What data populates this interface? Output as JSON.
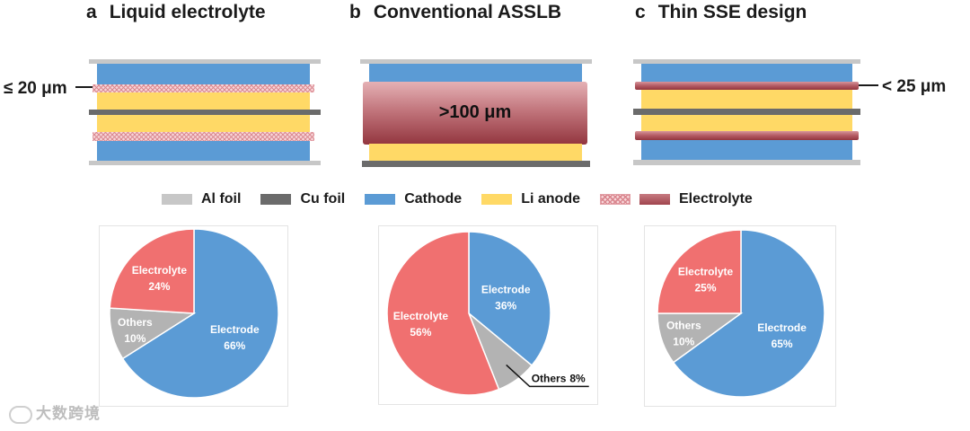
{
  "panels": [
    {
      "letter": "a",
      "title": "Liquid electrolyte",
      "thickness_label": "≤ 20 μm"
    },
    {
      "letter": "b",
      "title": "Conventional ASSLB",
      "thickness_label": ">100 μm"
    },
    {
      "letter": "c",
      "title": "Thin SSE design",
      "thickness_label": "< 25 μm"
    }
  ],
  "legend": [
    {
      "key": "al",
      "label": "Al foil"
    },
    {
      "key": "cu",
      "label": "Cu foil"
    },
    {
      "key": "cath",
      "label": "Cathode"
    },
    {
      "key": "li",
      "label": "Li anode"
    },
    {
      "key": "elec",
      "label": "Electrolyte"
    }
  ],
  "colors": {
    "al_foil": "#c7c7c7",
    "cu_foil": "#6b6b6b",
    "cathode": "#5b9bd5",
    "li_anode": "#ffd966",
    "electrolyte_solid": "#b35a63",
    "electrolyte_liquid": "#f4c6cc",
    "pie_electrode": "#5b9bd5",
    "pie_electrolyte": "#f07070",
    "pie_others": "#b3b3b3"
  },
  "chart_data": [
    {
      "type": "pie",
      "slices": [
        {
          "label": "Electrode",
          "pct_label": "66%",
          "value": 66
        },
        {
          "label": "Electrolyte",
          "pct_label": "24%",
          "value": 24
        },
        {
          "label": "Others",
          "pct_label": "10%",
          "value": 10
        }
      ]
    },
    {
      "type": "pie",
      "slices": [
        {
          "label": "Electrode",
          "pct_label": "36%",
          "value": 36
        },
        {
          "label": "Electrolyte",
          "pct_label": "56%",
          "value": 56
        },
        {
          "label": "Others",
          "pct_label": "8%",
          "value": 8
        }
      ]
    },
    {
      "type": "pie",
      "slices": [
        {
          "label": "Electrode",
          "pct_label": "65%",
          "value": 65
        },
        {
          "label": "Electrolyte",
          "pct_label": "25%",
          "value": 25
        },
        {
          "label": "Others",
          "pct_label": "10%",
          "value": 10
        }
      ]
    }
  ],
  "watermark": "大数跨境"
}
